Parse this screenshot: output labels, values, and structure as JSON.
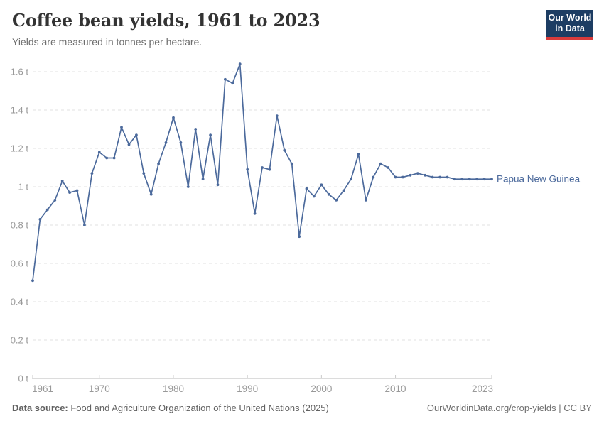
{
  "header": {
    "title": "Coffee bean yields, 1961 to 2023",
    "subtitle": "Yields are measured in tonnes per hectare.",
    "logo": {
      "line1": "Our World",
      "line2": "in Data"
    }
  },
  "colors": {
    "line_blue": "#4C6A9C",
    "logo_navy": "#1d3d63",
    "logo_red": "#d93b3b",
    "gridline": "#e2e2e2",
    "axis": "#b9b9b9",
    "tick_text": "#999999"
  },
  "chart_data": {
    "type": "line",
    "title": "Coffee bean yields, 1961 to 2023",
    "unit": "tonnes per hectare",
    "grid": "horizontal dashed",
    "legend_position": "end-of-line label",
    "xlim": [
      1961,
      2023
    ],
    "ylim": [
      0,
      1.65
    ],
    "x_ticks": [
      {
        "label": "1961",
        "year": 1961,
        "anchor": "start"
      },
      {
        "label": "1970",
        "year": 1970,
        "anchor": "middle"
      },
      {
        "label": "1980",
        "year": 1980,
        "anchor": "middle"
      },
      {
        "label": "1990",
        "year": 1990,
        "anchor": "middle"
      },
      {
        "label": "2000",
        "year": 2000,
        "anchor": "middle"
      },
      {
        "label": "2010",
        "year": 2010,
        "anchor": "middle"
      },
      {
        "label": "2023",
        "year": 2023,
        "anchor": "end"
      }
    ],
    "y_ticks": [
      {
        "label": "0 t",
        "value": 0
      },
      {
        "label": "0.2 t",
        "value": 0.2
      },
      {
        "label": "0.4 t",
        "value": 0.4
      },
      {
        "label": "0.6 t",
        "value": 0.6
      },
      {
        "label": "0.8 t",
        "value": 0.8
      },
      {
        "label": "1 t",
        "value": 1
      },
      {
        "label": "1.2 t",
        "value": 1.2
      },
      {
        "label": "1.4 t",
        "value": 1.4
      },
      {
        "label": "1.6 t",
        "value": 1.6
      }
    ],
    "series": [
      {
        "name": "Papua New Guinea",
        "color": "#4C6A9C",
        "x": [
          1961,
          1962,
          1963,
          1964,
          1965,
          1966,
          1967,
          1968,
          1969,
          1970,
          1971,
          1972,
          1973,
          1974,
          1975,
          1976,
          1977,
          1978,
          1979,
          1980,
          1981,
          1982,
          1983,
          1984,
          1985,
          1986,
          1987,
          1988,
          1989,
          1990,
          1991,
          1992,
          1993,
          1994,
          1995,
          1996,
          1997,
          1998,
          1999,
          2000,
          2001,
          2002,
          2003,
          2004,
          2005,
          2006,
          2007,
          2008,
          2009,
          2010,
          2011,
          2012,
          2013,
          2014,
          2015,
          2016,
          2017,
          2018,
          2019,
          2020,
          2021,
          2022,
          2023
        ],
        "values": [
          0.51,
          0.83,
          0.88,
          0.93,
          1.03,
          0.97,
          0.98,
          0.8,
          1.07,
          1.18,
          1.15,
          1.15,
          1.31,
          1.22,
          1.27,
          1.07,
          0.96,
          1.12,
          1.23,
          1.36,
          1.23,
          1.0,
          1.3,
          1.04,
          1.27,
          1.01,
          1.56,
          1.54,
          1.64,
          1.09,
          0.86,
          1.1,
          1.09,
          1.37,
          1.19,
          1.12,
          0.74,
          0.99,
          0.95,
          1.01,
          0.96,
          0.93,
          0.98,
          1.04,
          1.17,
          0.93,
          1.05,
          1.12,
          1.1,
          1.05,
          1.05,
          1.06,
          1.07,
          1.06,
          1.05,
          1.05,
          1.05,
          1.04,
          1.04,
          1.04,
          1.04,
          1.04,
          1.04
        ]
      }
    ]
  },
  "footer": {
    "source_label": "Data source:",
    "source_text": " Food and Agriculture Organization of the United Nations (2025)",
    "link_text": "OurWorldinData.org/crop-yields | CC BY"
  }
}
